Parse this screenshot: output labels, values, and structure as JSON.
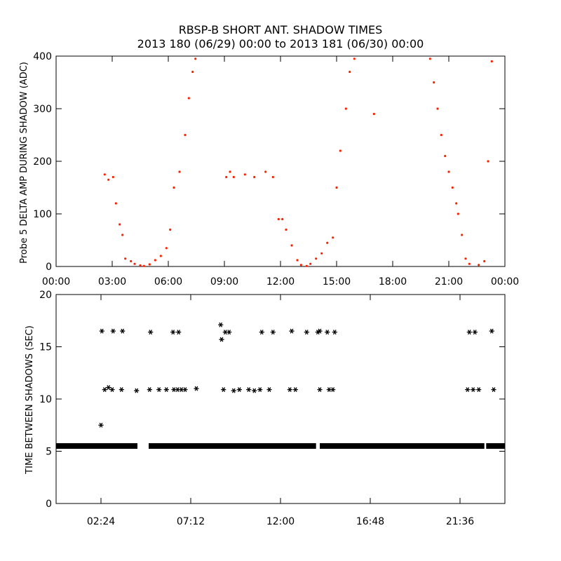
{
  "title": "RBSP-B SHORT ANT. SHADOW TIMES",
  "subtitle": "2013 180 (06/29) 00:00 to 2013 181 (06/30) 00:00",
  "chart_data": [
    {
      "type": "scatter",
      "ylabel": "Probe 5 DELTA AMP DURING SHADOW (ADC)",
      "xlabel": "",
      "xlim": [
        0,
        24
      ],
      "ylim": [
        0,
        400
      ],
      "x_ticks": [
        "00:00",
        "03:00",
        "06:00",
        "09:00",
        "12:00",
        "15:00",
        "18:00",
        "21:00",
        "00:00"
      ],
      "y_ticks": [
        "0",
        "100",
        "200",
        "300",
        "400"
      ],
      "marker_color": "#ff2000",
      "grid": false,
      "series": [
        {
          "x": [
            2.6,
            2.8,
            3.05,
            3.2,
            3.4,
            3.55,
            3.7,
            4.0,
            4.2,
            4.5,
            4.7,
            5.0,
            5.3,
            5.6,
            5.9,
            6.1,
            6.3,
            6.6,
            6.9,
            7.1,
            7.3,
            7.45,
            9.1,
            9.3,
            9.5,
            10.1,
            10.6,
            11.2,
            11.6,
            11.9,
            12.1,
            12.3,
            12.6,
            12.9,
            13.1,
            13.4,
            13.6,
            13.9,
            14.2,
            14.5,
            14.8,
            15.0,
            15.2,
            15.5,
            15.7,
            15.95,
            17.0,
            20.0,
            20.2,
            20.4,
            20.6,
            20.8,
            21.0,
            21.2,
            21.4,
            21.5,
            21.7,
            21.9,
            22.1,
            22.6,
            22.9,
            23.1,
            23.3
          ],
          "y": [
            175,
            165,
            170,
            120,
            80,
            60,
            15,
            10,
            5,
            2,
            1,
            4,
            12,
            20,
            35,
            70,
            150,
            180,
            250,
            320,
            370,
            395,
            170,
            180,
            170,
            175,
            170,
            180,
            170,
            90,
            90,
            70,
            40,
            12,
            3,
            1,
            5,
            15,
            25,
            45,
            55,
            150,
            220,
            300,
            370,
            395,
            290,
            395,
            350,
            300,
            250,
            210,
            180,
            150,
            120,
            100,
            60,
            15,
            5,
            3,
            10,
            200,
            390
          ]
        }
      ]
    },
    {
      "type": "scatter",
      "ylabel": "TIME BETWEEN SHADOWS (SEC)",
      "xlabel": "",
      "xlim": [
        0,
        24
      ],
      "ylim": [
        0,
        20
      ],
      "x_ticks": [
        "02:24",
        "07:12",
        "12:00",
        "16:48",
        "21:36"
      ],
      "y_ticks": [
        "0",
        "5",
        "10",
        "15",
        "20"
      ],
      "marker": "asterisk",
      "marker_color": "#000000",
      "grid": false,
      "baseline": {
        "y": 5.5,
        "segments": [
          [
            0,
            4.35
          ],
          [
            4.95,
            13.9
          ],
          [
            14.1,
            22.9
          ],
          [
            23.0,
            24.0
          ]
        ]
      },
      "series": [
        {
          "x": [
            2.45,
            3.05,
            3.55,
            5.05,
            6.25,
            6.55,
            8.8,
            9.05,
            9.25,
            11.0,
            11.6,
            12.6,
            13.4,
            14.0,
            14.1,
            14.5,
            14.9,
            22.1,
            22.4,
            23.3
          ],
          "y": [
            16.5,
            16.5,
            16.5,
            16.4,
            16.4,
            16.4,
            17.1,
            16.4,
            16.4,
            16.4,
            16.4,
            16.5,
            16.4,
            16.4,
            16.5,
            16.4,
            16.4,
            16.4,
            16.4,
            16.5
          ]
        },
        {
          "x": [
            8.85
          ],
          "y": [
            15.7
          ]
        },
        {
          "x": [
            2.6,
            2.8,
            3.0,
            3.5,
            4.3,
            5.0,
            5.5,
            5.9,
            6.3,
            6.5,
            6.7,
            6.9,
            7.5,
            8.95,
            9.5,
            9.8,
            10.3,
            10.6,
            10.9,
            11.4,
            12.5,
            12.8,
            14.1,
            14.6,
            14.8,
            22.0,
            22.3,
            22.6,
            23.4
          ],
          "y": [
            10.9,
            11.1,
            10.9,
            10.9,
            10.8,
            10.9,
            10.9,
            10.9,
            10.9,
            10.9,
            10.9,
            10.9,
            11.0,
            10.9,
            10.8,
            10.9,
            10.9,
            10.8,
            10.9,
            10.9,
            10.9,
            10.9,
            10.9,
            10.9,
            10.9,
            10.9,
            10.9,
            10.9,
            10.9
          ]
        },
        {
          "x": [
            2.4
          ],
          "y": [
            7.5
          ]
        }
      ]
    }
  ]
}
